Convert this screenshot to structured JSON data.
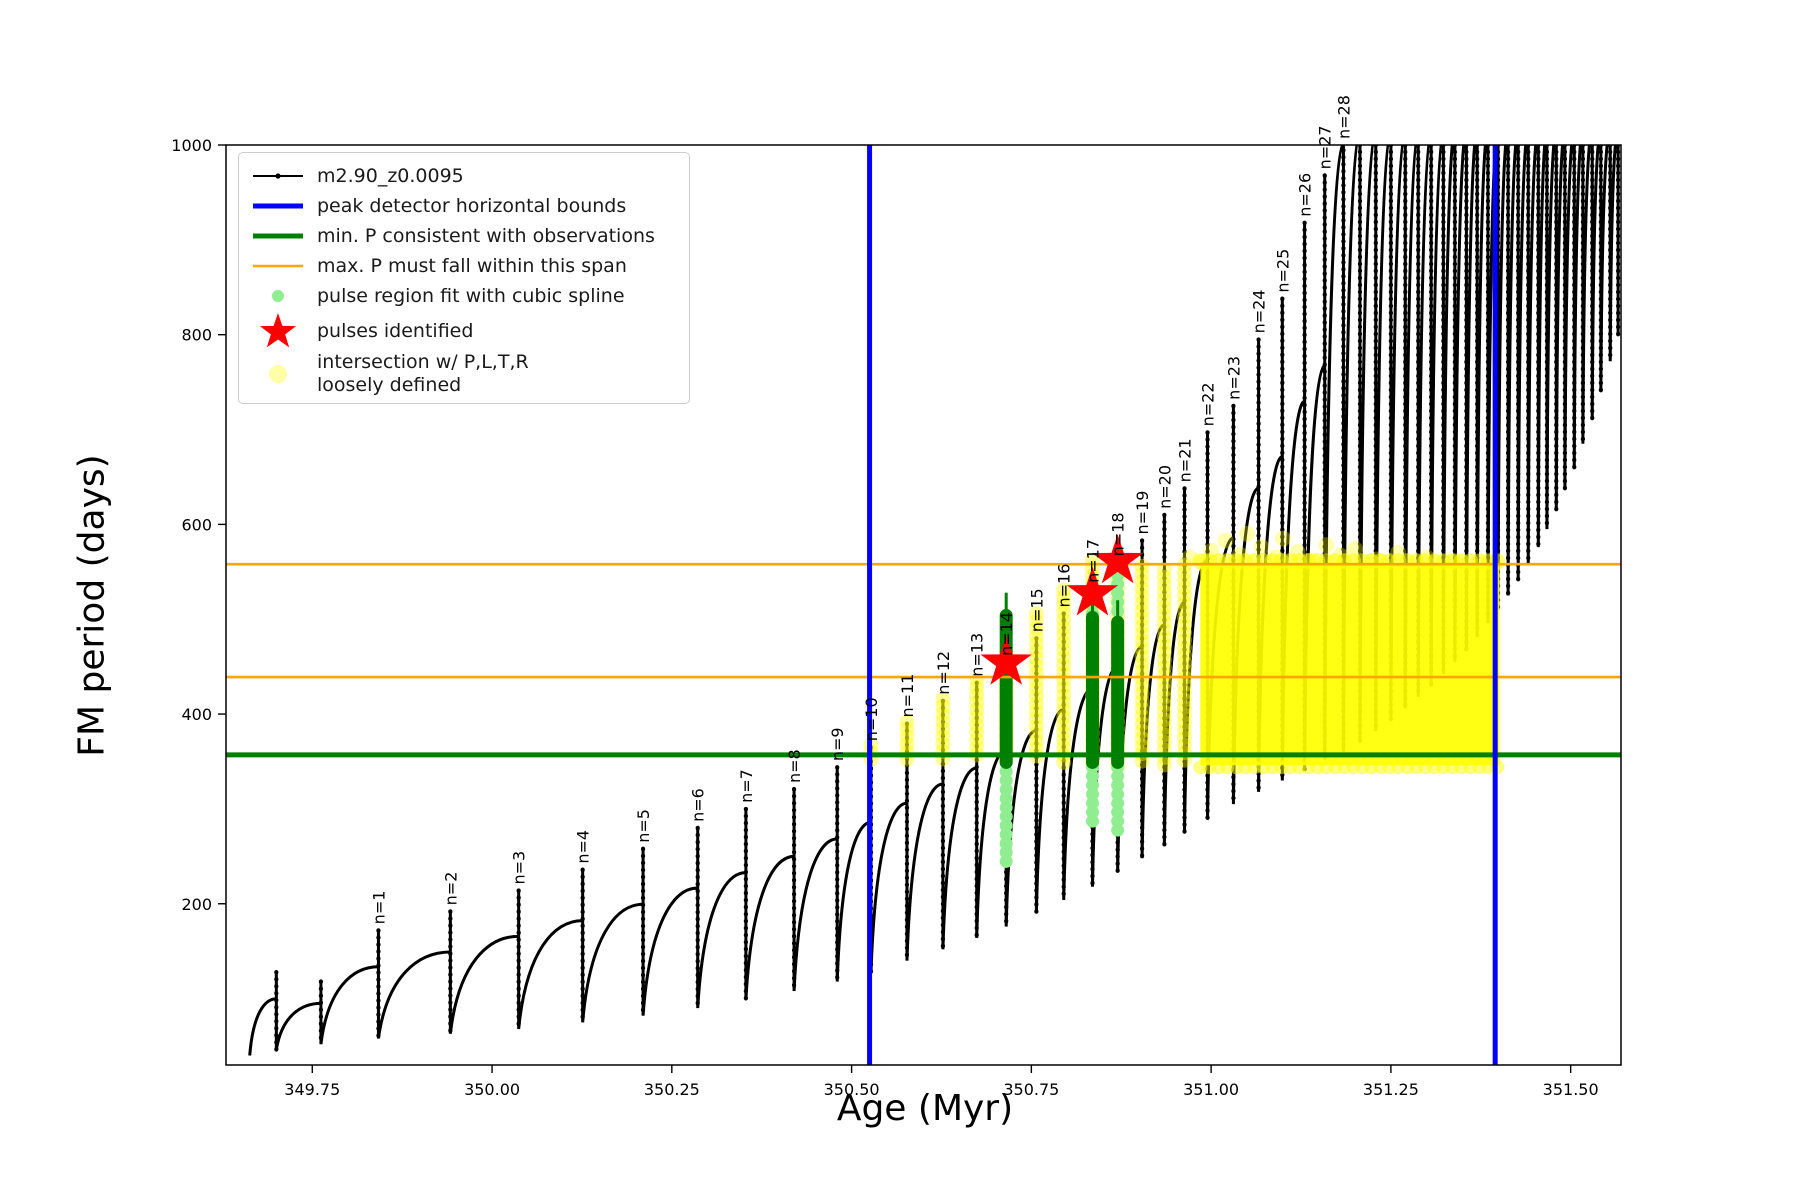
{
  "chart_data": {
    "type": "line",
    "title": "",
    "xlabel": "Age (Myr)",
    "ylabel": "FM period (days)",
    "xlim": [
      349.63,
      351.57
    ],
    "ylim": [
      30,
      1000
    ],
    "grid": false,
    "xticks": [
      "349.75",
      "350.00",
      "350.25",
      "350.50",
      "350.75",
      "351.00",
      "351.25",
      "351.50"
    ],
    "yticks": [
      "200",
      "400",
      "600",
      "800",
      "1000"
    ],
    "series_label": "m2.90_z0.0095",
    "colors": {
      "track": "#000000",
      "peak_bounds": "#0000ff",
      "min_p": "#008000",
      "max_p": "#ffa500",
      "spline_fit": "#90ee90",
      "pulse_star": "#ff0000",
      "intersection": "#ffff00"
    },
    "start_point": {
      "age": 349.663,
      "period": 40
    },
    "pulses": [
      {
        "label": null,
        "age": 349.7,
        "peak": 128,
        "trough": 46
      },
      {
        "label": null,
        "age": 349.762,
        "peak": 118,
        "trough": 52
      },
      {
        "label": "n=1",
        "age": 349.842,
        "peak": 172,
        "trough": 58
      },
      {
        "label": "n=2",
        "age": 349.942,
        "peak": 192,
        "trough": 63
      },
      {
        "label": "n=3",
        "age": 350.037,
        "peak": 214,
        "trough": 68
      },
      {
        "label": "n=4",
        "age": 350.126,
        "peak": 236,
        "trough": 75
      },
      {
        "label": "n=5",
        "age": 350.21,
        "peak": 258,
        "trough": 82
      },
      {
        "label": "n=6",
        "age": 350.286,
        "peak": 280,
        "trough": 90
      },
      {
        "label": "n=7",
        "age": 350.353,
        "peak": 300,
        "trough": 99
      },
      {
        "label": "n=8",
        "age": 350.42,
        "peak": 321,
        "trough": 108
      },
      {
        "label": "n=9",
        "age": 350.48,
        "peak": 344,
        "trough": 118
      },
      {
        "label": "n=10",
        "age": 350.527,
        "peak": 365,
        "trough": 128
      },
      {
        "label": "n=11",
        "age": 350.577,
        "peak": 390,
        "trough": 140
      },
      {
        "label": "n=12",
        "age": 350.627,
        "peak": 414,
        "trough": 152
      },
      {
        "label": "n=13",
        "age": 350.674,
        "peak": 433,
        "trough": 164
      },
      {
        "label": "n=14",
        "age": 350.715,
        "peak": 455,
        "trough": 176
      },
      {
        "label": "n=15",
        "age": 350.757,
        "peak": 480,
        "trough": 190
      },
      {
        "label": "n=16",
        "age": 350.795,
        "peak": 506,
        "trough": 204
      },
      {
        "label": "n=17",
        "age": 350.835,
        "peak": 532,
        "trough": 218
      },
      {
        "label": "n=18",
        "age": 350.87,
        "peak": 560,
        "trough": 233
      },
      {
        "label": "n=19",
        "age": 350.904,
        "peak": 583,
        "trough": 248
      },
      {
        "label": "n=20",
        "age": 350.935,
        "peak": 610,
        "trough": 262
      },
      {
        "label": "n=21",
        "age": 350.963,
        "peak": 638,
        "trough": 276
      },
      {
        "label": "n=22",
        "age": 350.995,
        "peak": 697,
        "trough": 290
      },
      {
        "label": "n=23",
        "age": 351.031,
        "peak": 725,
        "trough": 305
      },
      {
        "label": "n=24",
        "age": 351.066,
        "peak": 795,
        "trough": 318
      },
      {
        "label": "n=25",
        "age": 351.099,
        "peak": 838,
        "trough": 330
      },
      {
        "label": "n=26",
        "age": 351.13,
        "peak": 918,
        "trough": 342
      },
      {
        "label": "n=27",
        "age": 351.158,
        "peak": 968,
        "trough": 352
      },
      {
        "label": "n=28",
        "age": 351.184,
        "peak": 1002,
        "trough": 360
      },
      {
        "label": null,
        "age": 351.207,
        "peak": 1015,
        "trough": 370
      },
      {
        "label": null,
        "age": 351.229,
        "peak": 1015,
        "trough": 382
      },
      {
        "label": null,
        "age": 351.25,
        "peak": 1015,
        "trough": 394
      },
      {
        "label": null,
        "age": 351.27,
        "peak": 1015,
        "trough": 406
      },
      {
        "label": null,
        "age": 351.288,
        "peak": 1015,
        "trough": 418
      },
      {
        "label": null,
        "age": 351.306,
        "peak": 1015,
        "trough": 430
      },
      {
        "label": null,
        "age": 351.323,
        "peak": 1015,
        "trough": 442
      },
      {
        "label": null,
        "age": 351.339,
        "peak": 1015,
        "trough": 455
      },
      {
        "label": null,
        "age": 351.355,
        "peak": 1015,
        "trough": 468
      },
      {
        "label": null,
        "age": 351.37,
        "peak": 1015,
        "trough": 482
      },
      {
        "label": null,
        "age": 351.385,
        "peak": 1015,
        "trough": 496
      },
      {
        "label": null,
        "age": 351.399,
        "peak": 1015,
        "trough": 510
      },
      {
        "label": null,
        "age": 351.413,
        "peak": 1015,
        "trough": 525
      },
      {
        "label": null,
        "age": 351.427,
        "peak": 1015,
        "trough": 541
      },
      {
        "label": null,
        "age": 351.441,
        "peak": 1015,
        "trough": 558
      },
      {
        "label": null,
        "age": 351.455,
        "peak": 1015,
        "trough": 576
      },
      {
        "label": null,
        "age": 351.467,
        "peak": 1015,
        "trough": 595
      },
      {
        "label": null,
        "age": 351.48,
        "peak": 1015,
        "trough": 615
      },
      {
        "label": null,
        "age": 351.492,
        "peak": 1015,
        "trough": 637
      },
      {
        "label": null,
        "age": 351.505,
        "peak": 1015,
        "trough": 660
      },
      {
        "label": null,
        "age": 351.517,
        "peak": 1015,
        "trough": 685
      },
      {
        "label": null,
        "age": 351.53,
        "peak": 1015,
        "trough": 712
      },
      {
        "label": null,
        "age": 351.542,
        "peak": 1015,
        "trough": 741
      },
      {
        "label": null,
        "age": 351.555,
        "peak": 1015,
        "trough": 772
      },
      {
        "label": null,
        "age": 351.566,
        "peak": 1015,
        "trough": 800
      }
    ],
    "ref_lines": {
      "blue_vertical_ages": [
        350.525,
        351.395
      ],
      "orange_horizontal_periods": [
        558,
        439
      ],
      "green_horizontal_period": 357
    },
    "stars": [
      {
        "age": 350.715,
        "period": 454
      },
      {
        "age": 350.835,
        "period": 527
      },
      {
        "age": 350.87,
        "period": 561
      }
    ],
    "green_segments": [
      {
        "age": 350.715,
        "thin_top": 528,
        "top": 504,
        "bottom": 349
      },
      {
        "age": 350.835,
        "thin_top": 516,
        "top": 502,
        "bottom": 349
      },
      {
        "age": 350.87,
        "thin_top": 520,
        "top": 497,
        "bottom": 349
      }
    ],
    "lightgreen_segments": [
      {
        "age": 350.715,
        "top": 349,
        "bottom": 243
      },
      {
        "age": 350.835,
        "top": 344,
        "bottom": 285
      },
      {
        "age": 350.87,
        "top": 344,
        "bottom": 277
      },
      {
        "age": 350.835,
        "top": 525,
        "bottom": 505
      },
      {
        "age": 350.87,
        "top": 556,
        "bottom": 500
      }
    ],
    "yellow_bands": [
      {
        "age": 350.527,
        "top": 368,
        "bottom": 349
      },
      {
        "age": 350.577,
        "top": 392,
        "bottom": 345
      },
      {
        "age": 350.627,
        "top": 416,
        "bottom": 347
      },
      {
        "age": 350.674,
        "top": 436,
        "bottom": 350
      },
      {
        "age": 350.715,
        "top": 440,
        "bottom": 350
      },
      {
        "age": 350.757,
        "top": 506,
        "bottom": 348
      },
      {
        "age": 350.795,
        "top": 531,
        "bottom": 346
      },
      {
        "age": 350.835,
        "top": 562,
        "bottom": 344
      },
      {
        "age": 350.87,
        "top": 566,
        "bottom": 344
      },
      {
        "age": 350.904,
        "top": 556,
        "bottom": 345
      },
      {
        "age": 350.935,
        "top": 552,
        "bottom": 345
      },
      {
        "age": 350.963,
        "top": 557,
        "bottom": 345
      }
    ],
    "yellow_region": {
      "age_start": 350.985,
      "age_end": 351.401,
      "top": 557,
      "bottom": 346
    },
    "yellow_scatter": [
      [
        350.97,
        565
      ],
      [
        350.99,
        561
      ],
      [
        351.0,
        572
      ],
      [
        351.02,
        583
      ],
      [
        351.04,
        568
      ],
      [
        351.05,
        590
      ],
      [
        351.07,
        576
      ],
      [
        351.09,
        565
      ],
      [
        351.1,
        585
      ],
      [
        351.12,
        571
      ],
      [
        351.14,
        562
      ],
      [
        351.16,
        578
      ],
      [
        351.18,
        567
      ],
      [
        351.2,
        574
      ],
      [
        351.23,
        563
      ],
      [
        351.26,
        570
      ],
      [
        351.3,
        565
      ],
      [
        351.34,
        561
      ]
    ]
  },
  "legend": {
    "items": [
      {
        "label": "m2.90_z0.0095"
      },
      {
        "label": "peak detector horizontal bounds"
      },
      {
        "label": "min. P consistent with observations"
      },
      {
        "label": "max. P must fall within this span"
      },
      {
        "label": "pulse region fit with cubic spline"
      },
      {
        "label": "pulses identified"
      },
      {
        "label": "intersection w/ P,L,T,R\nloosely defined"
      }
    ]
  }
}
